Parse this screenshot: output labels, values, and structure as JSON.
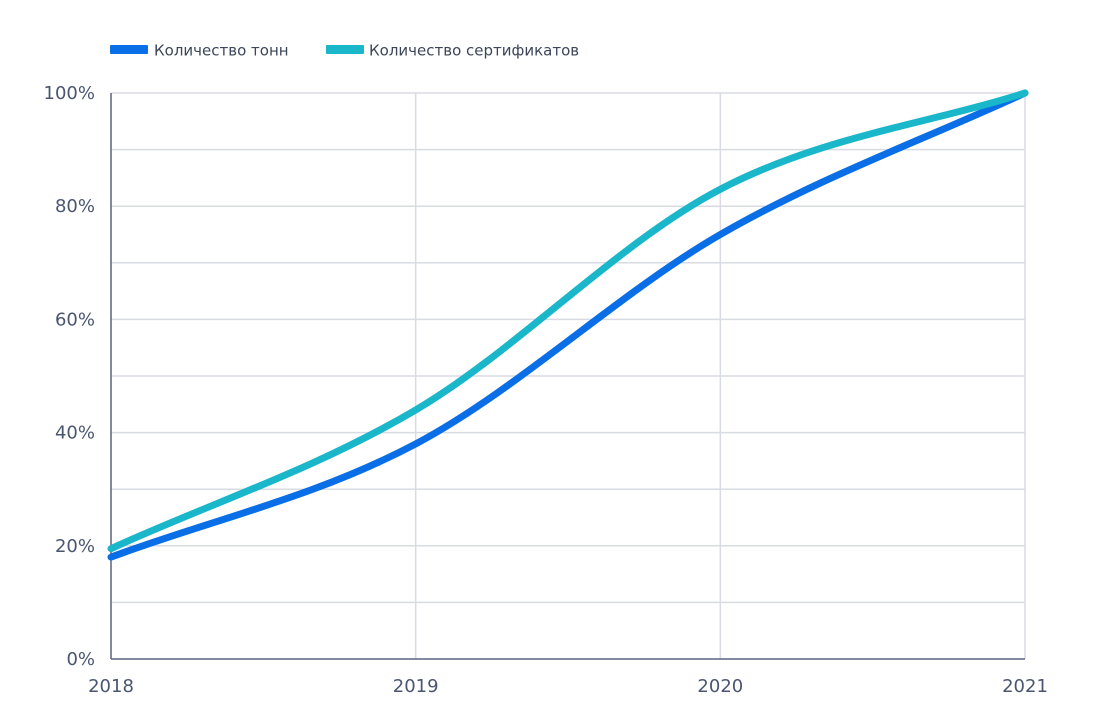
{
  "chart_data": {
    "type": "line",
    "x": [
      "2018",
      "2019",
      "2020",
      "2021"
    ],
    "ylim": [
      0,
      100
    ],
    "y_ticks": [
      {
        "value": 0,
        "label": "0%"
      },
      {
        "value": 20,
        "label": "20%"
      },
      {
        "value": 40,
        "label": "40%"
      },
      {
        "value": 60,
        "label": "60%"
      },
      {
        "value": 80,
        "label": "80%"
      },
      {
        "value": 100,
        "label": "100%"
      }
    ],
    "grid": true,
    "legend_position": "top-left",
    "series": [
      {
        "name": "Количество тонн",
        "color": "#0a6ee6",
        "values": [
          18,
          38,
          75,
          100
        ]
      },
      {
        "name": "Количество сертификатов",
        "color": "#19b7c9",
        "values": [
          19.5,
          44,
          83,
          100
        ]
      }
    ],
    "axis_color": "#5a6480",
    "grid_color": "#d8dbe2"
  }
}
